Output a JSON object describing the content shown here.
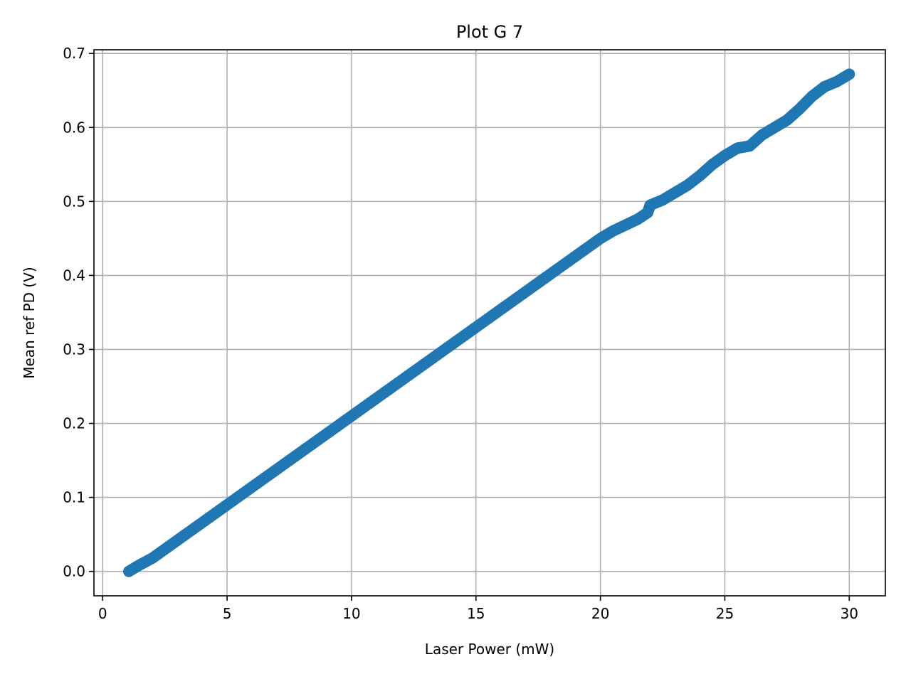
{
  "chart_data": {
    "type": "scatter",
    "title": "Plot G 7",
    "xlabel": "Laser Power (mW)",
    "ylabel": "Mean ref PD (V)",
    "xlim": [
      -0.35,
      31.45
    ],
    "ylim": [
      -0.033,
      0.705
    ],
    "xticks": [
      0,
      5,
      10,
      15,
      20,
      25,
      30
    ],
    "yticks": [
      0.0,
      0.1,
      0.2,
      0.3,
      0.4,
      0.5,
      0.6,
      0.7
    ],
    "xtick_labels": [
      "0",
      "5",
      "10",
      "15",
      "20",
      "25",
      "30"
    ],
    "ytick_labels": [
      "0.0",
      "0.1",
      "0.2",
      "0.3",
      "0.4",
      "0.5",
      "0.6",
      "0.7"
    ],
    "grid": true,
    "legend": "none",
    "marker_color": "#1f77b4",
    "series": [
      {
        "x": [
          1.05,
          1.5,
          2.0,
          2.5,
          3.0,
          3.5,
          4.0,
          4.5,
          5.0,
          5.5,
          6.0,
          6.5,
          7.0,
          7.5,
          8.0,
          8.5,
          9.0,
          9.5,
          10.0,
          10.5,
          11.0,
          11.5,
          12.0,
          12.5,
          13.0,
          13.5,
          14.0,
          14.5,
          15.0,
          15.5,
          16.0,
          16.5,
          17.0,
          17.5,
          18.0,
          18.5,
          19.0,
          19.5,
          20.0,
          20.5,
          21.0,
          21.5,
          21.9,
          22.0,
          22.5,
          23.0,
          23.5,
          24.0,
          24.5,
          25.0,
          25.5,
          26.0,
          26.5,
          27.0,
          27.5,
          28.0,
          28.5,
          29.0,
          29.5,
          30.0
        ],
        "y": [
          0.0,
          0.009,
          0.018,
          0.03,
          0.042,
          0.054,
          0.066,
          0.078,
          0.09,
          0.102,
          0.114,
          0.126,
          0.138,
          0.15,
          0.162,
          0.174,
          0.186,
          0.198,
          0.21,
          0.222,
          0.234,
          0.246,
          0.258,
          0.27,
          0.282,
          0.294,
          0.306,
          0.318,
          0.33,
          0.342,
          0.354,
          0.366,
          0.378,
          0.39,
          0.402,
          0.414,
          0.426,
          0.438,
          0.45,
          0.46,
          0.468,
          0.476,
          0.485,
          0.495,
          0.502,
          0.512,
          0.522,
          0.535,
          0.55,
          0.562,
          0.572,
          0.575,
          0.59,
          0.6,
          0.61,
          0.625,
          0.642,
          0.655,
          0.662,
          0.672
        ]
      }
    ]
  }
}
